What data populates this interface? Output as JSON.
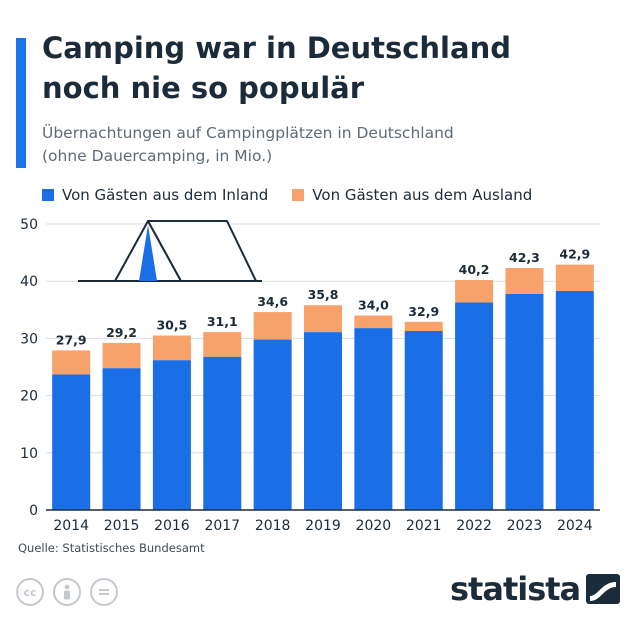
{
  "header": {
    "title_line1": "Camping war in Deutschland",
    "title_line2": "noch nie so populär",
    "subtitle_line1": "Übernachtungen auf Campingplätzen in Deutschland",
    "subtitle_line2": "(ohne Dauercamping, in Mio.)"
  },
  "footer": {
    "source": "Quelle: Statistisches Bundesamt",
    "brand": "statista",
    "license_icons": [
      "creative-commons-icon",
      "attribution-person-icon",
      "no-derivatives-icon"
    ]
  },
  "colors": {
    "accent": "#1a73e8",
    "inland": "#1a6ee6",
    "ausland": "#f7a16b",
    "text": "#1c2b39"
  },
  "chart_data": {
    "type": "bar",
    "stacked": true,
    "categories": [
      "2014",
      "2015",
      "2016",
      "2017",
      "2018",
      "2019",
      "2020",
      "2021",
      "2022",
      "2023",
      "2024"
    ],
    "series": [
      {
        "name": "Von Gästen aus dem Inland",
        "values": [
          23.7,
          24.8,
          26.2,
          26.8,
          29.8,
          31.1,
          31.8,
          31.3,
          36.3,
          37.8,
          38.3
        ]
      },
      {
        "name": "Von Gästen aus dem Ausland",
        "values": [
          4.2,
          4.4,
          4.3,
          4.3,
          4.8,
          4.7,
          2.2,
          1.6,
          3.9,
          4.5,
          4.6
        ]
      }
    ],
    "totals": [
      "27,9",
      "29,2",
      "30,5",
      "31,1",
      "34,6",
      "35,8",
      "34,0",
      "32,9",
      "40,2",
      "42,3",
      "42,9"
    ],
    "yticks": [
      "0",
      "10",
      "20",
      "30",
      "40",
      "50"
    ],
    "ylim": [
      0,
      50
    ],
    "title": "Camping war in Deutschland noch nie so populär",
    "xlabel": "",
    "ylabel": "",
    "grid": true,
    "legend": "top-left"
  }
}
